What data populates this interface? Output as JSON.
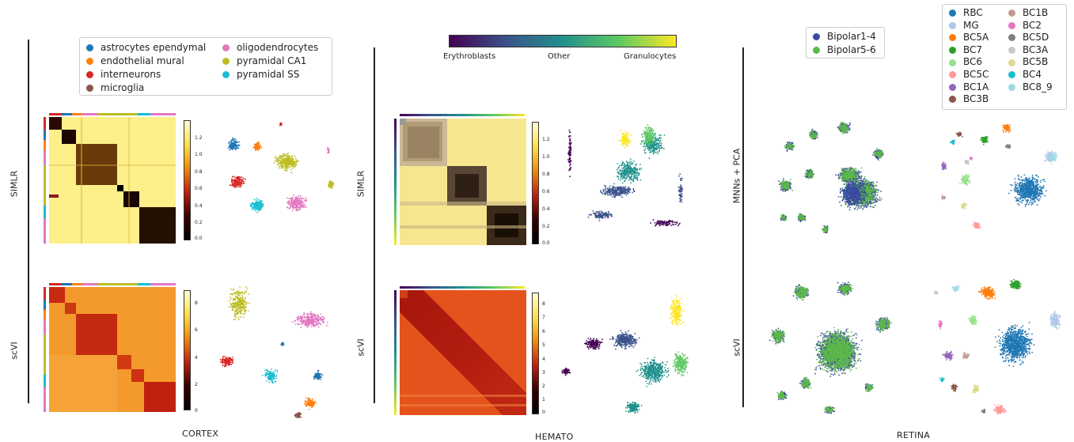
{
  "cortex": {
    "caption": "CORTEX",
    "row_top": "SIMLR",
    "row_bottom": "scVI",
    "legend": [
      {
        "label": "astrocytes ependymal",
        "color": "#1f77b4"
      },
      {
        "label": "endothelial mural",
        "color": "#ff7f0e"
      },
      {
        "label": "interneurons",
        "color": "#d62728"
      },
      {
        "label": "microglia",
        "color": "#8c564b"
      },
      {
        "label": "oligodendrocytes",
        "color": "#e377c2"
      },
      {
        "label": "pyramidal CA1",
        "color": "#bcbd22"
      },
      {
        "label": "pyramidal SS",
        "color": "#17becf"
      }
    ],
    "top_colorbar_ticks": [
      "1.2",
      "1.0",
      "0.8",
      "0.6",
      "0.4",
      "0.2",
      "0.0"
    ],
    "bottom_colorbar_ticks": [
      "8",
      "6",
      "4",
      "2",
      "0"
    ]
  },
  "hemato": {
    "caption": "HEMATO",
    "row_top": "SIMLR",
    "row_bottom": "scVI",
    "colorbar_labels": [
      "Erythroblasts",
      "Other",
      "Granulocytes"
    ],
    "top_colorbar_ticks": [
      "1.2",
      "1.0",
      "0.8",
      "0.6",
      "0.4",
      "0.2",
      "0.0"
    ],
    "bottom_colorbar_ticks": [
      "8",
      "7",
      "6",
      "5",
      "4",
      "3",
      "2",
      "1",
      "0"
    ]
  },
  "retina": {
    "caption": "RETINA",
    "row_top": "MNNs + PCA",
    "row_bottom": "scVI",
    "batch_legend": [
      {
        "label": "Bipolar1-4",
        "color": "#3b4aa0"
      },
      {
        "label": "Bipolar5-6",
        "color": "#5cb84a"
      }
    ],
    "celltype_legend": [
      {
        "label": "RBC",
        "color": "#1f77b4"
      },
      {
        "label": "MG",
        "color": "#aec7e8"
      },
      {
        "label": "BC5A",
        "color": "#ff7f0e"
      },
      {
        "label": "BC7",
        "color": "#2ca02c"
      },
      {
        "label": "BC6",
        "color": "#98df8a"
      },
      {
        "label": "BC5C",
        "color": "#ff9896"
      },
      {
        "label": "BC1A",
        "color": "#9467bd"
      },
      {
        "label": "BC3B",
        "color": "#8c564b"
      },
      {
        "label": "BC1B",
        "color": "#c49c94"
      },
      {
        "label": "BC2",
        "color": "#e377c2"
      },
      {
        "label": "BC5D",
        "color": "#7f7f7f"
      },
      {
        "label": "BC3A",
        "color": "#c7c7c7"
      },
      {
        "label": "BC5B",
        "color": "#dbdb8d"
      },
      {
        "label": "BC4",
        "color": "#17becf"
      },
      {
        "label": "BC8_9",
        "color": "#9edae5"
      }
    ]
  }
}
